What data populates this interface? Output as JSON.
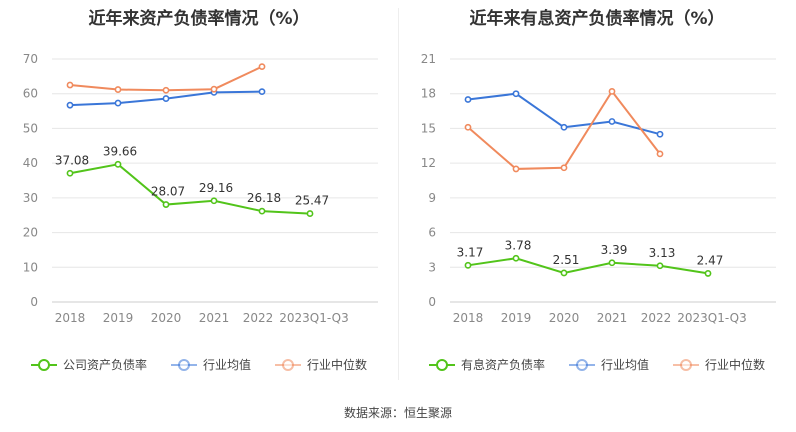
{
  "source": "数据来源：恒生聚源",
  "chart_data": [
    {
      "type": "line",
      "title": "近年来资产负债率情况（%）",
      "categories": [
        "2018",
        "2019",
        "2020",
        "2021",
        "2022",
        "2023Q1-Q3"
      ],
      "ylim": [
        0,
        70
      ],
      "yticks": [
        0,
        10,
        20,
        30,
        40,
        50,
        60,
        70
      ],
      "grid": true,
      "legend_position": "bottom",
      "series": [
        {
          "name": "公司资产负债率",
          "color": "#52c41a",
          "values": [
            37.08,
            39.66,
            28.07,
            29.16,
            26.18,
            25.47
          ],
          "labels": [
            "37.08",
            "39.66",
            "28.07",
            "29.16",
            "26.18",
            "25.47"
          ]
        },
        {
          "name": "行业均值",
          "color": "#3a76d8",
          "values": [
            56.7,
            57.3,
            58.6,
            60.4,
            60.6,
            null
          ]
        },
        {
          "name": "行业中位数",
          "color": "#f08a5d",
          "values": [
            62.5,
            61.2,
            61.0,
            61.3,
            67.8,
            null
          ]
        }
      ]
    },
    {
      "type": "line",
      "title": "近年来有息资产负债率情况（%）",
      "categories": [
        "2018",
        "2019",
        "2020",
        "2021",
        "2022",
        "2023Q1-Q3"
      ],
      "ylim": [
        0,
        21
      ],
      "yticks": [
        0,
        3,
        6,
        9,
        12,
        15,
        18,
        21
      ],
      "grid": true,
      "legend_position": "bottom",
      "series": [
        {
          "name": "有息资产负债率",
          "color": "#52c41a",
          "values": [
            3.17,
            3.78,
            2.51,
            3.39,
            3.13,
            2.47
          ],
          "labels": [
            "3.17",
            "3.78",
            "2.51",
            "3.39",
            "3.13",
            "2.47"
          ]
        },
        {
          "name": "行业均值",
          "color": "#3a76d8",
          "values": [
            17.5,
            18.0,
            15.1,
            15.6,
            14.5,
            null
          ]
        },
        {
          "name": "行业中位数",
          "color": "#f08a5d",
          "values": [
            15.1,
            11.5,
            11.6,
            18.2,
            12.8,
            null
          ]
        }
      ]
    }
  ]
}
